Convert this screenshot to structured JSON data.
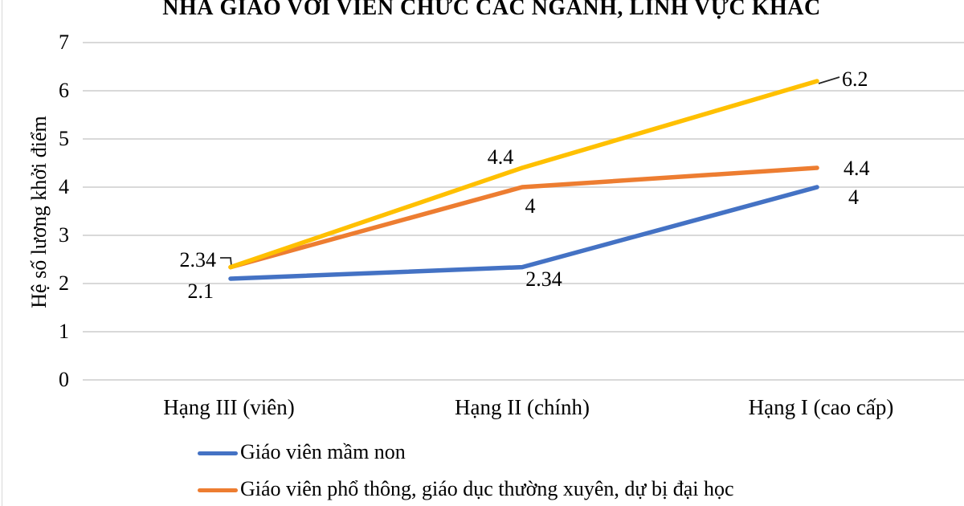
{
  "chart_data": {
    "type": "line",
    "title": "NHÀ GIÁO VỚI VIÊN CHỨC CÁC NGÀNH, LĨNH VỰC KHÁC",
    "ylabel": "Hệ số lương khởi điểm",
    "xlabel": "",
    "categories": [
      "Hạng III (viên)",
      "Hạng II (chính)",
      "Hạng I (cao cấp)"
    ],
    "y_ticks": [
      0,
      1,
      2,
      3,
      4,
      5,
      6,
      7
    ],
    "ylim": [
      0,
      7
    ],
    "grid": true,
    "legend_position": "bottom",
    "series": [
      {
        "name": "Giáo viên mầm non",
        "color": "#4472C4",
        "values": [
          2.1,
          2.34,
          4
        ]
      },
      {
        "name": "Giáo viên phổ thông, giáo dục thường xuyên, dự bị đại học",
        "color": "#ED7D31",
        "values": [
          2.34,
          4,
          4.4
        ]
      },
      {
        "name": "",
        "color": "#FFC000",
        "values": [
          2.34,
          4.4,
          6.2
        ]
      }
    ]
  },
  "legend": {
    "items": [
      {
        "label": "Giáo viên mầm non",
        "color": "#4472C4"
      },
      {
        "label": "Giáo viên phổ thông, giáo dục thường xuyên, dự bị đại học",
        "color": "#ED7D31"
      }
    ]
  },
  "colors": {
    "gridline": "#D9D9D9",
    "blue": "#4472C4",
    "orange": "#ED7D31",
    "yellow": "#FFC000"
  }
}
